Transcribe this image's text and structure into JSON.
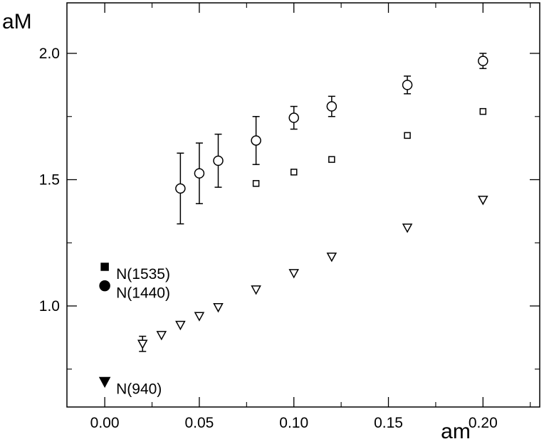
{
  "chart_data": {
    "type": "scatter",
    "xlabel": "am",
    "ylabel": "aM",
    "xlim": [
      -0.02,
      0.23
    ],
    "ylim": [
      0.6,
      2.2
    ],
    "x_ticks": [
      0.0,
      0.05,
      0.1,
      0.15,
      0.2
    ],
    "x_tick_labels": [
      "0.00",
      "0.05",
      "0.10",
      "0.15",
      "0.20"
    ],
    "y_ticks": [
      1.0,
      1.5,
      2.0
    ],
    "y_tick_labels": [
      "1.0",
      "1.5",
      "2.0"
    ],
    "grid": false,
    "series": [
      {
        "marker": "circle-open",
        "x": [
          0.04,
          0.05,
          0.06,
          0.08,
          0.1,
          0.12,
          0.16,
          0.2
        ],
        "y": [
          1.465,
          1.525,
          1.575,
          1.655,
          1.745,
          1.79,
          1.875,
          1.97
        ],
        "err": [
          0.14,
          0.12,
          0.105,
          0.095,
          0.045,
          0.04,
          0.035,
          0.03
        ]
      },
      {
        "marker": "square-open",
        "x": [
          0.08,
          0.1,
          0.12,
          0.16,
          0.2
        ],
        "y": [
          1.485,
          1.53,
          1.58,
          1.675,
          1.77
        ],
        "err": [
          0.012,
          0.01,
          0.01,
          0.01,
          0.01
        ]
      },
      {
        "marker": "triangle-down-open",
        "x": [
          0.02,
          0.03,
          0.04,
          0.05,
          0.06,
          0.08,
          0.1,
          0.12,
          0.16,
          0.2
        ],
        "y": [
          0.85,
          0.885,
          0.925,
          0.96,
          0.995,
          1.065,
          1.13,
          1.195,
          1.31,
          1.42
        ],
        "err": [
          0.03,
          0.02,
          0.015,
          0.012,
          0.01,
          0.01,
          0.01,
          0.01,
          0.01,
          0.01
        ]
      }
    ],
    "reference_points": [
      {
        "label": "N(1535)",
        "marker": "square-filled",
        "x": 0.0,
        "y": 1.155
      },
      {
        "label": "N(1440)",
        "marker": "circle-filled",
        "x": 0.0,
        "y": 1.08
      },
      {
        "label": "N(940)",
        "marker": "triangle-down-filled",
        "x": 0.0,
        "y": 0.7
      }
    ]
  }
}
